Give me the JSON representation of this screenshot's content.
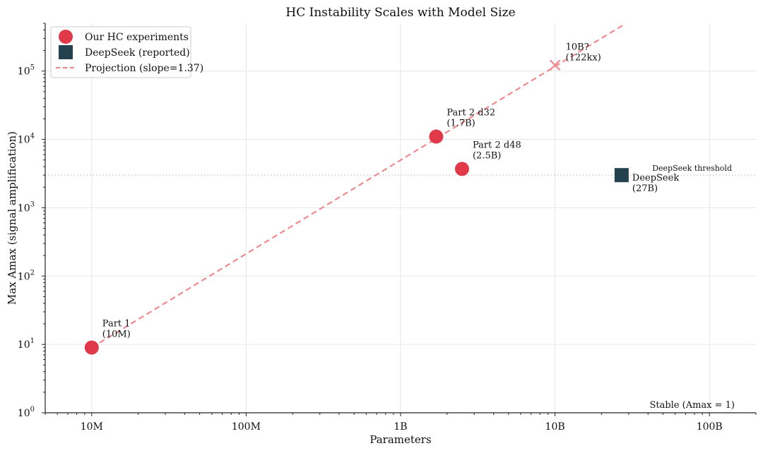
{
  "chart_data": {
    "type": "scatter",
    "title": "HC Instability Scales with Model Size",
    "xlabel": "Parameters",
    "ylabel": "Max Amax (signal amplification)",
    "x_scale": "log",
    "y_scale": "log",
    "xlim": [
      5000000,
      200000000000
    ],
    "ylim": [
      1,
      500000
    ],
    "x_ticks": [
      {
        "value": 10000000,
        "label": "10M"
      },
      {
        "value": 100000000,
        "label": "100M"
      },
      {
        "value": 1000000000,
        "label": "1B"
      },
      {
        "value": 10000000000,
        "label": "10B"
      },
      {
        "value": 100000000000,
        "label": "100B"
      }
    ],
    "y_ticks": [
      {
        "value": 1,
        "base": "10",
        "exp": "0"
      },
      {
        "value": 10,
        "base": "10",
        "exp": "1"
      },
      {
        "value": 100,
        "base": "10",
        "exp": "2"
      },
      {
        "value": 1000,
        "base": "10",
        "exp": "3"
      },
      {
        "value": 10000,
        "base": "10",
        "exp": "4"
      },
      {
        "value": 100000,
        "base": "10",
        "exp": "5"
      }
    ],
    "grid": true,
    "legend_position": "top-left",
    "legend": [
      {
        "label": "Our HC experiments",
        "marker": "circle",
        "color": "#e03a4a"
      },
      {
        "label": "DeepSeek (reported)",
        "marker": "square",
        "color": "#24414f"
      },
      {
        "label": "Projection (slope=1.37)",
        "marker": "dashed-line",
        "color": "#ee8a8f"
      }
    ],
    "series": [
      {
        "name": "Our HC experiments",
        "marker": "circle",
        "color": "#e03a4a",
        "points": [
          {
            "x": 10000000,
            "y": 9,
            "label_lines": [
              "Part 1",
              "(10M)"
            ]
          },
          {
            "x": 1700000000,
            "y": 11000,
            "label_lines": [
              "Part 2 d32",
              "(1.7B)"
            ]
          },
          {
            "x": 2500000000,
            "y": 3700,
            "label_lines": [
              "Part 2 d48",
              "(2.5B)"
            ]
          }
        ]
      },
      {
        "name": "DeepSeek (reported)",
        "marker": "square",
        "color": "#24414f",
        "points": [
          {
            "x": 27000000000,
            "y": 3000,
            "label_lines": [
              "DeepSeek",
              "(27B)"
            ]
          }
        ]
      },
      {
        "name": "Projection (slope=1.37)",
        "type": "line",
        "style": "dashed",
        "color": "#ee8a8f",
        "points": [
          {
            "x": 10000000,
            "y": 9
          },
          {
            "x": 28000000000,
            "y": 480000
          }
        ]
      }
    ],
    "projected_point": {
      "x": 10000000000,
      "y": 122000,
      "marker": "x",
      "color": "#ee8a8f",
      "label_lines": [
        "10B?",
        "(122kx)"
      ]
    },
    "reference_lines": [
      {
        "orientation": "horizontal",
        "y": 3000,
        "style": "dotted",
        "color": "#bdbdbd",
        "label": "DeepSeek threshold"
      }
    ],
    "annotations": [
      {
        "text": "Stable (Amax = 1)",
        "color": "#9a9a9a",
        "position": "bottom-right"
      }
    ]
  }
}
